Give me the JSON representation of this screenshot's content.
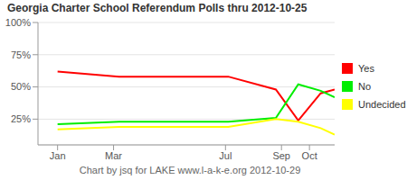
{
  "chart_data": {
    "type": "line",
    "title": "Georgia Charter School Referendum Polls thru 2012-10-25",
    "annotations": [
      "Chart by jsq for LAKE www.l-a-k-e.org 2012-10-29"
    ],
    "x": [
      1,
      3.2,
      7.1,
      8.8,
      9.6,
      10.4,
      10.9
    ],
    "xlim": [
      0.3,
      10.9
    ],
    "xticks": [
      {
        "value": 1,
        "label": "Jan"
      },
      {
        "value": 3,
        "label": "Mar"
      },
      {
        "value": 7,
        "label": "Jul"
      },
      {
        "value": 9,
        "label": "Sep"
      },
      {
        "value": 10,
        "label": "Oct"
      }
    ],
    "ylim": [
      5,
      100
    ],
    "yticks": [
      {
        "value": 25,
        "label": "25%"
      },
      {
        "value": 50,
        "label": "50%"
      },
      {
        "value": 75,
        "label": "75%"
      },
      {
        "value": 100,
        "label": "100%"
      }
    ],
    "grid": true,
    "legend": "right",
    "series": [
      {
        "name": "Yes",
        "color": "#ff0000",
        "values": [
          62,
          58,
          58,
          48,
          24,
          45,
          48
        ]
      },
      {
        "name": "No",
        "color": "#00ee00",
        "values": [
          21,
          23,
          23,
          26,
          52,
          47,
          42
        ]
      },
      {
        "name": "Undecided",
        "color": "#ffff00",
        "values": [
          17,
          19,
          19,
          25,
          23,
          18,
          13
        ]
      }
    ]
  }
}
